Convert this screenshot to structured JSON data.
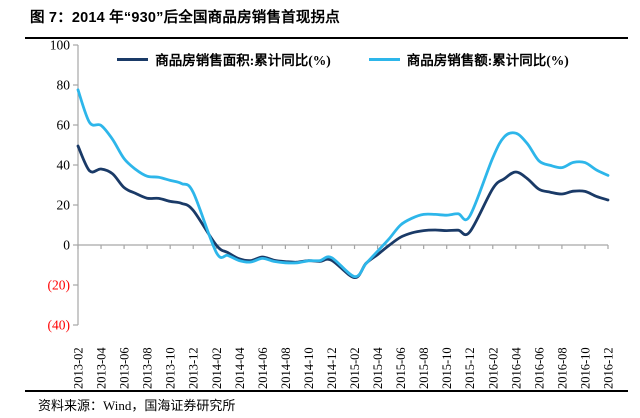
{
  "figure": {
    "title": "图 7：2014 年“930”后全国商品房销售首现拐点",
    "source": "资料来源：Wind，国海证券研究所"
  },
  "legend": [
    {
      "label": "商品房销售面积:累计同比(%)",
      "color": "#1A3A67"
    },
    {
      "label": "商品房销售额:累计同比(%)",
      "color": "#2DB6EA"
    }
  ],
  "chart_data": {
    "type": "line",
    "title": "2014 年“930”后全国商品房销售首现拐点",
    "xlabel": "",
    "ylabel": "",
    "ylim": [
      -40,
      100
    ],
    "grid": false,
    "legend_position": "top",
    "axis_color": "#A6A6A6",
    "negative_tick_color": "#FF0000",
    "y_ticks": [
      {
        "value": 100,
        "label": "100",
        "negative": false
      },
      {
        "value": 80,
        "label": "80",
        "negative": false
      },
      {
        "value": 60,
        "label": "60",
        "negative": false
      },
      {
        "value": 40,
        "label": "40",
        "negative": false
      },
      {
        "value": 20,
        "label": "20",
        "negative": false
      },
      {
        "value": 0,
        "label": "0",
        "negative": false
      },
      {
        "value": -20,
        "label": "(20)",
        "negative": true
      },
      {
        "value": -40,
        "label": "(40)",
        "negative": true
      }
    ],
    "x_tick_labels": [
      "2013-02",
      "2013-04",
      "2013-06",
      "2013-08",
      "2013-10",
      "2013-12",
      "2014-02",
      "2014-04",
      "2014-06",
      "2014-08",
      "2014-10",
      "2014-12",
      "2015-02",
      "2015-04",
      "2015-06",
      "2015-08",
      "2015-10",
      "2015-12",
      "2016-02",
      "2016-04",
      "2016-06",
      "2016-08",
      "2016-10",
      "2016-12"
    ],
    "months": [
      "2013-02",
      "2013-03",
      "2013-04",
      "2013-05",
      "2013-06",
      "2013-07",
      "2013-08",
      "2013-09",
      "2013-10",
      "2013-11",
      "2013-12",
      "2014-02",
      "2014-03",
      "2014-04",
      "2014-05",
      "2014-06",
      "2014-07",
      "2014-08",
      "2014-09",
      "2014-10",
      "2014-11",
      "2014-12",
      "2015-02",
      "2015-03",
      "2015-04",
      "2015-05",
      "2015-06",
      "2015-07",
      "2015-08",
      "2015-09",
      "2015-10",
      "2015-11",
      "2015-12",
      "2016-02",
      "2016-03",
      "2016-04",
      "2016-05",
      "2016-06",
      "2016-07",
      "2016-08",
      "2016-09",
      "2016-10",
      "2016-11",
      "2016-12"
    ],
    "series": [
      {
        "name": "商品房销售面积:累计同比(%)",
        "color": "#1A3A67",
        "values": [
          49.5,
          37.1,
          38.0,
          35.6,
          28.7,
          25.8,
          23.4,
          23.3,
          21.8,
          20.8,
          17.3,
          -0.1,
          -3.8,
          -6.9,
          -7.8,
          -6.0,
          -7.6,
          -8.3,
          -8.6,
          -7.8,
          -8.2,
          -7.6,
          -16.3,
          -9.2,
          -4.8,
          -0.2,
          3.9,
          6.1,
          7.2,
          7.5,
          7.2,
          7.4,
          6.5,
          28.2,
          33.1,
          36.5,
          33.2,
          27.9,
          26.4,
          25.5,
          26.9,
          26.8,
          24.3,
          22.5
        ]
      },
      {
        "name": "商品房销售额:累计同比(%)",
        "color": "#2DB6EA",
        "values": [
          77.6,
          61.3,
          59.8,
          52.8,
          43.2,
          37.8,
          34.4,
          33.9,
          32.3,
          30.7,
          26.3,
          -3.7,
          -5.2,
          -7.8,
          -8.5,
          -6.7,
          -8.2,
          -8.9,
          -8.9,
          -7.9,
          -7.8,
          -6.3,
          -15.8,
          -9.3,
          -3.1,
          3.1,
          10.0,
          13.4,
          15.3,
          15.3,
          14.9,
          15.6,
          14.4,
          43.6,
          54.1,
          55.9,
          50.7,
          42.1,
          39.8,
          38.7,
          41.3,
          41.2,
          37.5,
          34.8
        ]
      }
    ]
  }
}
